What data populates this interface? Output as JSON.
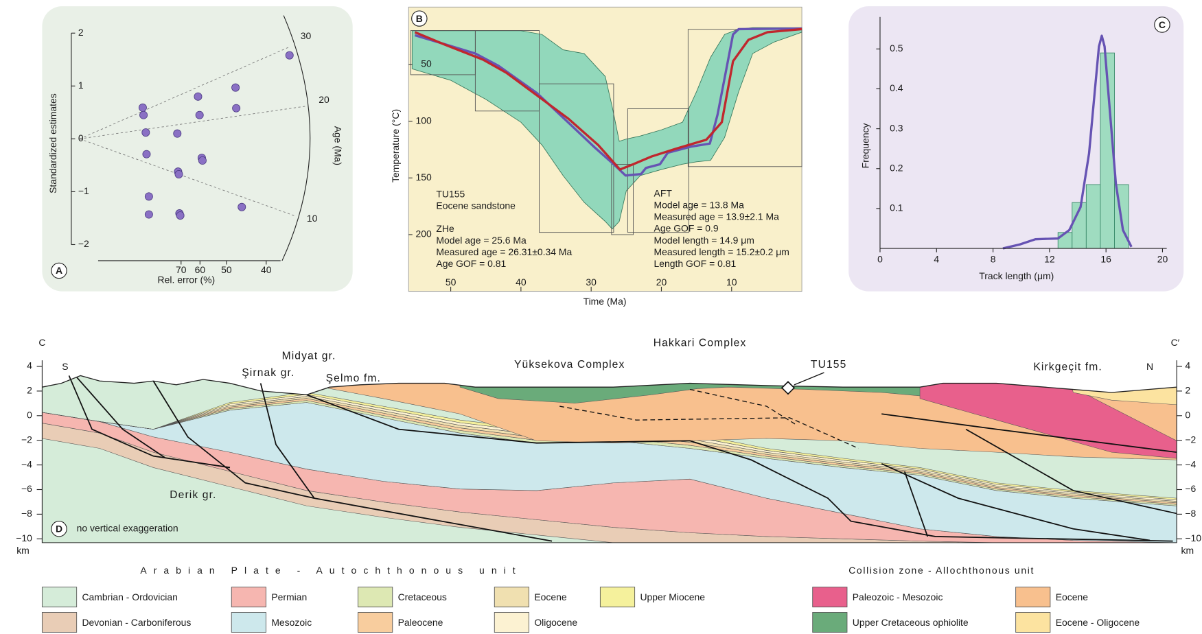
{
  "chart_data": [
    {
      "type": "scatter",
      "panel": "A",
      "xlabel": "Rel. error (%)",
      "ylabel": "Standardized estimates",
      "zlabel": "Age (Ma)",
      "x_scale": "reciprocal",
      "xlim": [
        260,
        37.3
      ],
      "xticks": [
        70,
        60,
        50,
        40
      ],
      "ylim": [
        -2,
        2
      ],
      "yticks": [
        {
          "value": -2,
          "label": "−2"
        },
        {
          "value": -1,
          "label": "−1"
        },
        0,
        1,
        2
      ],
      "zticks": [
        30,
        20,
        10
      ],
      "color": "#8a70c4",
      "x": [
        105.7,
        104.6,
        101.6,
        100.6,
        72.4,
        60.9,
        60.2,
        47.3,
        47.1,
        71.9,
        71.4,
        59.2,
        58.9,
        97.7,
        97.7,
        71.0,
        70.5,
        45.6,
        35.8
      ],
      "y": [
        0.59,
        0.45,
        0.12,
        -0.29,
        0.1,
        0.8,
        0.45,
        0.97,
        0.58,
        -0.62,
        -0.67,
        -0.36,
        -0.41,
        -1.09,
        -1.43,
        -1.41,
        -1.45,
        -1.29,
        1.58
      ]
    },
    {
      "type": "line",
      "panel": "B",
      "xlabel": "Time (Ma)",
      "ylabel": "Temperature (°C)",
      "xlim": [
        56,
        0
      ],
      "xticks": [
        50,
        40,
        30,
        20,
        10
      ],
      "ylim": [
        0,
        250
      ],
      "y_inverted": true,
      "yticks": [
        50,
        100,
        150,
        200
      ],
      "envelope": {
        "color": "#92d8bb",
        "x": [
          55.5,
          50,
          45,
          40,
          37,
          34,
          31,
          28,
          27,
          26,
          25,
          23,
          20,
          17,
          15,
          13,
          11,
          9,
          7,
          4,
          0
        ],
        "low": [
          20.2,
          20.2,
          20.2,
          20.2,
          23.5,
          37.0,
          40.3,
          60.5,
          87.4,
          117.7,
          115.7,
          113.0,
          107.6,
          100.9,
          74.0,
          43.7,
          23.5,
          18.8,
          17.5,
          17.5,
          17.5
        ],
        "high": [
          53.8,
          63.9,
          80.7,
          100.9,
          121.0,
          147.9,
          171.5,
          188.3,
          195.0,
          188.3,
          161.4,
          147.9,
          142.6,
          137.9,
          135.8,
          134.5,
          114.3,
          74.0,
          40.3,
          30.3,
          21.5
        ]
      },
      "constraints": [
        [
          55.7,
          46.5,
          20,
          59
        ],
        [
          46.5,
          37.4,
          20,
          91
        ],
        [
          37.4,
          26.8,
          67,
          198
        ],
        [
          27.1,
          24.0,
          138,
          200
        ],
        [
          24.8,
          16.1,
          89,
          198
        ],
        [
          16.2,
          0,
          19,
          140
        ]
      ],
      "series": [
        {
          "color": "#6653b3",
          "x": [
            55.1,
            51.1,
            46.5,
            43.2,
            37.7,
            33.3,
            29.5,
            26.8,
            25.1,
            22.9,
            22.2,
            20.2,
            19.1,
            15.8,
            13.1,
            12.0,
            9.8,
            9.0,
            0
          ],
          "values": [
            24.2,
            31.6,
            40.3,
            51.1,
            75.3,
            100.9,
            123.1,
            137.9,
            147.9,
            146.6,
            141.2,
            137.9,
            127.8,
            122.4,
            119.7,
            94.1,
            23.5,
            18.8,
            18.2
          ]
        },
        {
          "color": "#c0272d",
          "x": [
            55.1,
            50.9,
            45.4,
            42.1,
            37.7,
            33.3,
            29.0,
            25.9,
            24.0,
            21.4,
            18.0,
            13.6,
            11.4,
            9.8,
            7.6,
            4.9,
            0
          ],
          "values": [
            21.5,
            32.3,
            45.7,
            57.2,
            77.3,
            97.5,
            121.0,
            142.6,
            137.9,
            131.1,
            124.4,
            116.3,
            100.9,
            47.1,
            28.2,
            21.5,
            18.8
          ]
        }
      ],
      "annotations": [
        [
          "TU155",
          "Eocene sandstone"
        ],
        [
          "ZHe",
          "Model age = 25.6  Ma",
          "Measured age = 26.31±0.34 Ma",
          "Age GOF = 0.81"
        ],
        [
          "AFT",
          "Model age = 13.8  Ma",
          "Measured age = 13.9±2.1 Ma",
          "Age GOF = 0.9",
          "Model length = 14.9 μm",
          "Measured length = 15.2±0.2 μm",
          "Length GOF = 0.81"
        ]
      ]
    },
    {
      "type": "histogram",
      "panel": "C",
      "xlabel": "Track length (μm)",
      "ylabel": "Frequency",
      "xlim": [
        0,
        20.3
      ],
      "xticks": [
        0,
        4,
        8,
        12,
        16,
        20
      ],
      "ylim": [
        0,
        0.58
      ],
      "yticks": [
        0.1,
        0.2,
        0.3,
        0.4,
        0.5
      ],
      "bins": [
        12.6,
        13.6,
        14.6,
        15.6,
        16.6,
        17.6
      ],
      "values": [
        0.04,
        0.115,
        0.16,
        0.49,
        0.16
      ],
      "color": "#9fdcc0",
      "curve": {
        "color": "#6653b3",
        "x": [
          8.7,
          9.9,
          11.0,
          12.6,
          13.4,
          14.2,
          14.8,
          15.2,
          15.5,
          15.7,
          15.9,
          16.3,
          16.7,
          17.2,
          17.8
        ],
        "values": [
          0,
          0.01,
          0.023,
          0.025,
          0.046,
          0.104,
          0.238,
          0.392,
          0.506,
          0.533,
          0.506,
          0.333,
          0.162,
          0.046,
          0.004
        ]
      }
    }
  ],
  "cross_section": {
    "panel": "D",
    "start": "C",
    "end": "C′",
    "left_dir": "S",
    "right_dir": "N",
    "note": "no vertical exaggeration",
    "unit": "km",
    "ylim": [
      -10,
      4
    ],
    "yticks": [
      4,
      2,
      0,
      {
        "value": -2,
        "label": "−2"
      },
      {
        "value": -4,
        "label": "−4"
      },
      {
        "value": -6,
        "label": "−6"
      },
      {
        "value": -8,
        "label": "−8"
      },
      {
        "value": -10,
        "label": "−10"
      }
    ],
    "labels": [
      "Derik gr.",
      "Midyat gr.",
      "Şirnak gr.",
      "Şelmo fm.",
      "Yüksekova Complex",
      "Hakkari Complex",
      "TU155",
      "Kirkgeçit fm."
    ]
  },
  "legend": {
    "groups": [
      {
        "title": "Arabian Plate - Autochthonous unit",
        "items": [
          {
            "label": "Cambrian - Ordovician",
            "color": "#d5ecd9"
          },
          {
            "label": "Devonian - Carboniferous",
            "color": "#e9cdb6"
          },
          {
            "label": "Permian",
            "color": "#f6b6b0"
          },
          {
            "label": "Mesozoic",
            "color": "#cde8ec"
          },
          {
            "label": "Cretaceous",
            "color": "#dde8b3"
          },
          {
            "label": "Paleocene",
            "color": "#f8cd9e"
          },
          {
            "label": "Eocene",
            "color": "#f0e0b0"
          },
          {
            "label": "Oligocene",
            "color": "#fcf2d2"
          },
          {
            "label": "Upper Miocene",
            "color": "#f5f19c"
          }
        ]
      },
      {
        "title": "Collision zone - Allochthonous unit",
        "items": [
          {
            "label": "Paleozoic - Mesozoic",
            "color": "#e8608c"
          },
          {
            "label": "Upper Cretaceous ophiolite",
            "color": "#6aab7a"
          },
          {
            "label": "Eocene",
            "color": "#f8c08e"
          },
          {
            "label": "Eocene - Oligocene",
            "color": "#fce3a0"
          }
        ]
      }
    ]
  }
}
